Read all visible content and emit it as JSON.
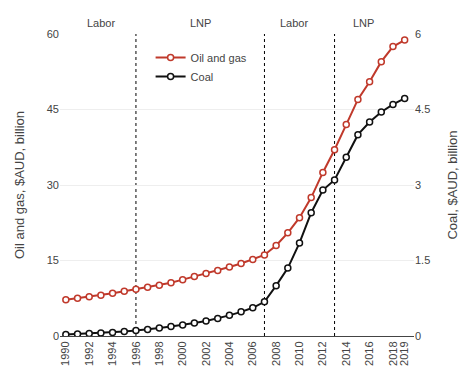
{
  "chart_data": {
    "type": "line",
    "x": [
      1990,
      1991,
      1992,
      1993,
      1994,
      1995,
      1996,
      1997,
      1998,
      1999,
      2000,
      2001,
      2002,
      2003,
      2004,
      2005,
      2006,
      2007,
      2008,
      2009,
      2010,
      2011,
      2012,
      2013,
      2014,
      2015,
      2016,
      2017,
      2018,
      2019
    ],
    "series": [
      {
        "name": "Oil and gas",
        "color": "#C0392B",
        "marker": "circle",
        "line_style": "solid",
        "values": [
          7.2,
          7.5,
          7.8,
          8.1,
          8.5,
          8.9,
          9.3,
          9.7,
          10.1,
          10.6,
          11.2,
          11.8,
          12.4,
          13.0,
          13.7,
          14.4,
          15.2,
          16.1,
          18.0,
          20.5,
          23.5,
          27.5,
          32.5,
          37.0,
          42.0,
          47.0,
          50.5,
          54.5,
          57.5,
          58.8
        ]
      },
      {
        "name": "Coal",
        "color": "#111111",
        "marker": "circle",
        "line_style": "solid",
        "axis": "y2",
        "values": [
          0.03,
          0.04,
          0.05,
          0.06,
          0.07,
          0.09,
          0.11,
          0.13,
          0.16,
          0.19,
          0.22,
          0.26,
          0.3,
          0.35,
          0.41,
          0.48,
          0.56,
          0.68,
          1.0,
          1.35,
          1.85,
          2.45,
          2.9,
          3.1,
          3.55,
          4.0,
          4.25,
          4.45,
          4.6,
          4.72
        ]
      }
    ],
    "y_label": "Oil and gas, $AUD, billion",
    "y2_label": "Coal, $AUD, billion",
    "xlim": [
      1989.5,
      2019.8
    ],
    "xticks": [
      1990,
      1992,
      1994,
      1996,
      1998,
      2000,
      2002,
      2004,
      2006,
      2008,
      2010,
      2012,
      2014,
      2016,
      2018,
      2019
    ],
    "ylim": [
      0,
      60
    ],
    "yticks": [
      0,
      15,
      30,
      45,
      60
    ],
    "y2lim": [
      0,
      6
    ],
    "y2ticks": [
      0,
      1.5,
      3,
      4.5,
      6
    ],
    "vlines": [
      1996,
      2007,
      2013
    ],
    "annotations": [
      {
        "x": 1993.0,
        "text": "Labor"
      },
      {
        "x": 2001.5,
        "text": "LNP"
      },
      {
        "x": 2009.5,
        "text": "Labor"
      },
      {
        "x": 2015.5,
        "text": "LNP"
      }
    ],
    "grid": true,
    "legend": "top"
  }
}
